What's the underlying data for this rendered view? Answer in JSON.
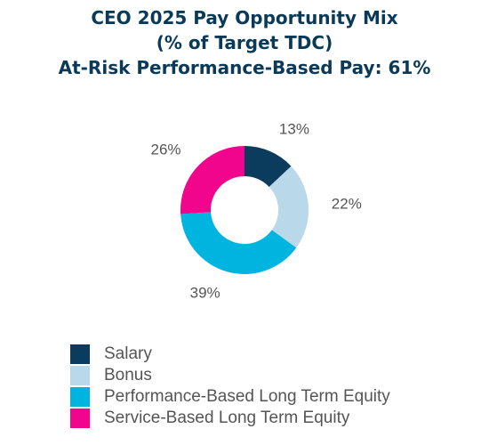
{
  "chart_data": {
    "type": "pie",
    "style": "donut",
    "title_lines": [
      "CEO 2025 Pay Opportunity Mix",
      "(% of Target TDC)",
      "At-Risk Performance-Based Pay: 61%"
    ],
    "categories": [
      "Salary",
      "Bonus",
      "Performance-Based Long Term Equity",
      "Service-Based Long Term Equity"
    ],
    "values": [
      13,
      22,
      39,
      26
    ],
    "value_labels": [
      "13%",
      "22%",
      "39%",
      "26%"
    ],
    "unit": "%",
    "colors": [
      "#0b3c5d",
      "#b9d9ea",
      "#00b4e0",
      "#f0058c"
    ],
    "legend": "bottom-left",
    "title_color": "#0a3a57"
  }
}
